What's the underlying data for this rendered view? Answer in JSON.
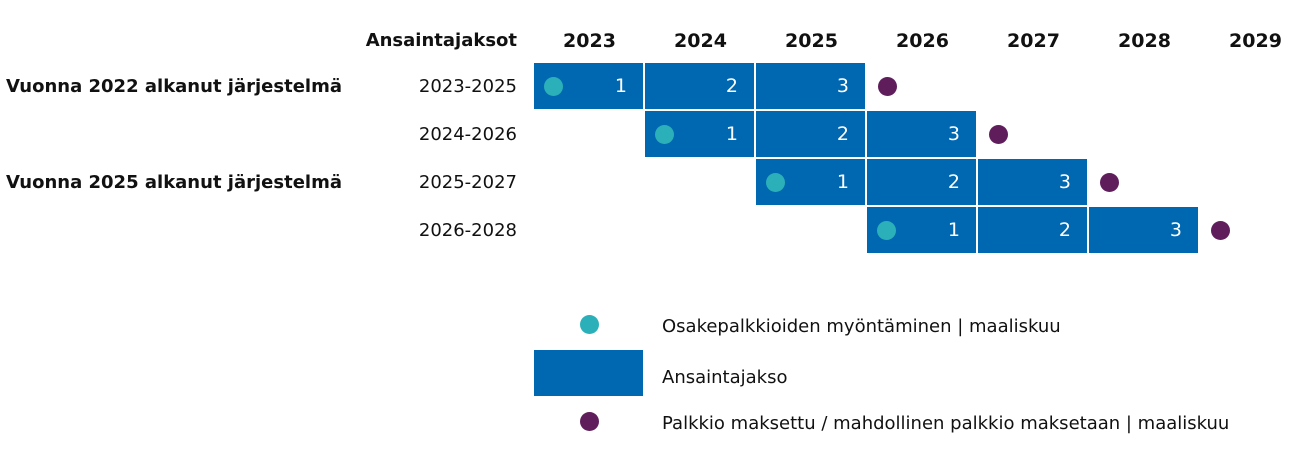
{
  "colors": {
    "bar": "#0067b1",
    "grant": "#2bb0b9",
    "payout": "#5f1e5b"
  },
  "header": {
    "periods_label": "Ansaintajaksot",
    "years": [
      "2023",
      "2024",
      "2025",
      "2026",
      "2027",
      "2028",
      "2029"
    ]
  },
  "systems": [
    {
      "label": "Vuonna 2022 alkanut järjestelmä",
      "row": 0
    },
    {
      "label": "Vuonna 2025 alkanut järjestelmä",
      "row": 2
    }
  ],
  "rows": [
    {
      "period": "2023-2025",
      "start_year": "2023",
      "cells": [
        "1",
        "2",
        "3"
      ]
    },
    {
      "period": "2024-2026",
      "start_year": "2024",
      "cells": [
        "1",
        "2",
        "3"
      ]
    },
    {
      "period": "2025-2027",
      "start_year": "2025",
      "cells": [
        "1",
        "2",
        "3"
      ]
    },
    {
      "period": "2026-2028",
      "start_year": "2026",
      "cells": [
        "1",
        "2",
        "3"
      ]
    }
  ],
  "legend": {
    "grant": "Osakepalkkioiden myöntäminen | maaliskuu",
    "period": "Ansaintajakso",
    "payout": "Palkkio maksettu / mahdollinen palkkio maksetaan | maaliskuu"
  }
}
